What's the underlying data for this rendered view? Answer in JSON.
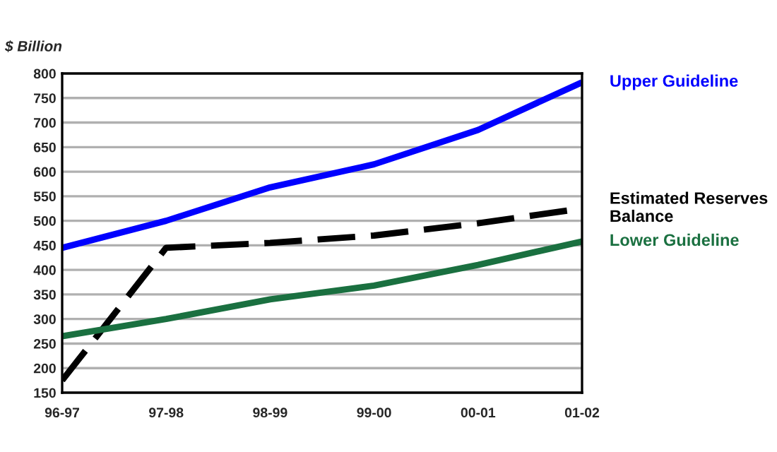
{
  "chart_data": {
    "type": "line",
    "ylabel": "$ Billion",
    "categories": [
      "96-97",
      "97-98",
      "98-99",
      "99-00",
      "00-01",
      "01-02"
    ],
    "series": [
      {
        "name": "Upper Guideline",
        "color": "#0000ff",
        "values": [
          445,
          500,
          568,
          615,
          685,
          782
        ]
      },
      {
        "name": "Estimated Reserves Balance",
        "color": "#000000",
        "values": [
          175,
          445,
          455,
          470,
          495,
          525
        ],
        "line_style": "dashed"
      },
      {
        "name": "Lower Guideline",
        "color": "#1a7040",
        "values": [
          265,
          300,
          340,
          368,
          410,
          458
        ]
      }
    ],
    "ylim": [
      150,
      800
    ],
    "yticks": [
      150,
      200,
      250,
      300,
      350,
      400,
      450,
      500,
      550,
      600,
      650,
      700,
      750,
      800
    ],
    "grid": "y",
    "legend": false
  }
}
